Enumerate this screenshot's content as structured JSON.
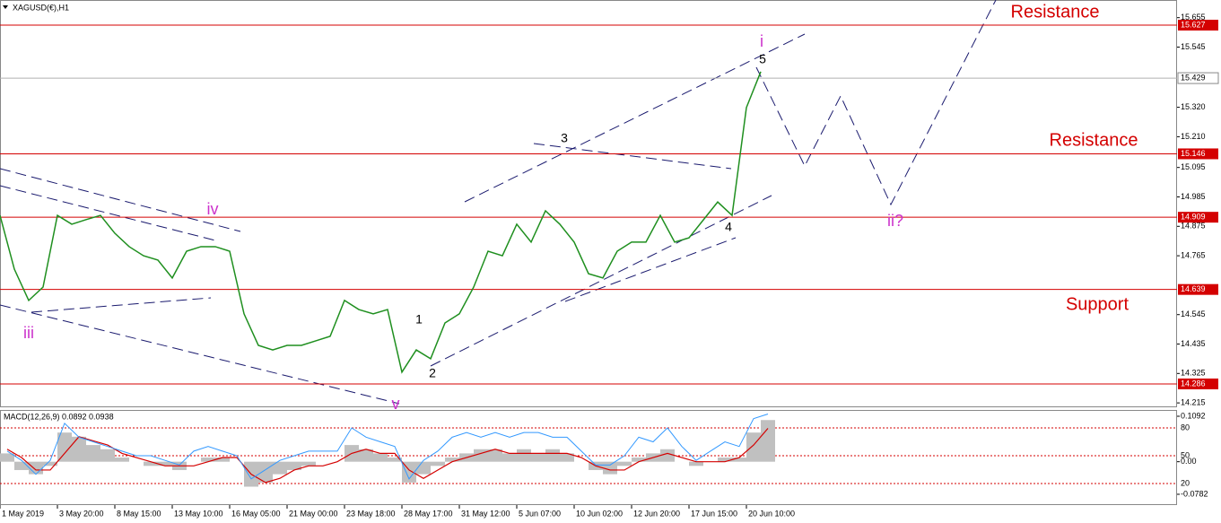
{
  "chart_data": {
    "type": "line",
    "title": "XAGUSD(€),H1",
    "color": "#1f8f1f",
    "price": [
      14.916,
      14.715,
      14.598,
      14.648,
      14.916,
      14.883,
      14.9,
      14.916,
      14.849,
      14.799,
      14.765,
      14.749,
      14.682,
      14.782,
      14.799,
      14.799,
      14.782,
      14.548,
      14.43,
      14.413,
      14.43,
      14.43,
      14.447,
      14.464,
      14.598,
      14.564,
      14.548,
      14.564,
      14.33,
      14.413,
      14.38,
      14.514,
      14.548,
      14.648,
      14.782,
      14.765,
      14.883,
      14.816,
      14.933,
      14.883,
      14.816,
      14.698,
      14.682,
      14.782,
      14.816,
      14.816,
      14.916,
      14.816,
      14.832,
      14.899,
      14.966,
      14.916,
      15.319,
      15.453
    ],
    "xlim": [
      0,
      82
    ],
    "xticks": [
      {
        "value": 0,
        "label": "1 May 2019"
      },
      {
        "value": 4,
        "label": "3 May 20:00"
      },
      {
        "value": 8,
        "label": "8 May 15:00"
      },
      {
        "value": 12,
        "label": "13 May 10:00"
      },
      {
        "value": 16,
        "label": "16 May 05:00"
      },
      {
        "value": 20,
        "label": "21 May 00:00"
      },
      {
        "value": 24,
        "label": "23 May 18:00"
      },
      {
        "value": 28,
        "label": "28 May 17:00"
      },
      {
        "value": 32,
        "label": "31 May 12:00"
      },
      {
        "value": 36,
        "label": "5 Jun 07:00"
      },
      {
        "value": 40,
        "label": "10 Jun 02:00"
      },
      {
        "value": 44,
        "label": "12 Jun 20:00"
      },
      {
        "value": 48,
        "label": "17 Jun 15:00"
      },
      {
        "value": 52,
        "label": "20 Jun 10:00"
      }
    ],
    "ylim": [
      14.202,
      15.721
    ],
    "yticks": [
      15.655,
      15.545,
      {
        "value": 15.32,
        "label": "15.320"
      },
      {
        "value": 15.21,
        "label": "15.210"
      },
      15.095,
      14.985,
      14.875,
      14.765,
      14.545,
      14.435,
      14.325,
      14.215
    ],
    "levels": [
      15.627,
      15.146,
      14.909,
      14.639,
      14.286
    ],
    "current_price": 15.429,
    "zone_labels": [
      "Resistance",
      "Resistance",
      "Support"
    ],
    "wave_labels": [
      "i",
      "5",
      "3",
      "iv",
      "iii",
      "1",
      "2",
      "4",
      "v",
      "ii?"
    ],
    "macd": {
      "label": "MACD(12,26,9) 0.0892 0.0938",
      "ylim": [
        -0.1041,
        0.1221
      ],
      "yticks": [
        0.1092,
        {
          "value": 0,
          "label": "0.00"
        },
        -0.0782
      ],
      "histogram": [
        0.02,
        -0.02,
        -0.03,
        -0.01,
        0.07,
        0.06,
        0.04,
        0.03,
        0.01,
        0.0,
        -0.01,
        -0.01,
        -0.02,
        0.0,
        0.01,
        0.01,
        0.0,
        -0.06,
        -0.05,
        -0.03,
        -0.02,
        -0.01,
        0.0,
        0.0,
        0.04,
        0.03,
        0.02,
        0.01,
        -0.05,
        -0.03,
        -0.01,
        0.01,
        0.02,
        0.03,
        0.03,
        0.02,
        0.03,
        0.02,
        0.03,
        0.02,
        0.0,
        -0.02,
        -0.03,
        -0.01,
        0.01,
        0.02,
        0.03,
        0.0,
        -0.01,
        0.0,
        0.01,
        0.01,
        0.07,
        0.1
      ],
      "signal": [
        0.03,
        0.01,
        -0.02,
        -0.02,
        0.02,
        0.06,
        0.05,
        0.04,
        0.02,
        0.01,
        0.0,
        -0.01,
        -0.01,
        -0.01,
        0.0,
        0.01,
        0.01,
        -0.03,
        -0.05,
        -0.04,
        -0.02,
        -0.01,
        -0.01,
        0.0,
        0.02,
        0.03,
        0.02,
        0.02,
        -0.02,
        -0.04,
        -0.02,
        0.0,
        0.01,
        0.02,
        0.03,
        0.02,
        0.02,
        0.02,
        0.02,
        0.02,
        0.01,
        -0.01,
        -0.02,
        -0.02,
        0.0,
        0.01,
        0.02,
        0.01,
        0.0,
        0.0,
        0.0,
        0.01,
        0.04,
        0.08
      ],
      "y2lim": [
        -3.2,
        98.4
      ],
      "y2ticks": [
        80,
        50,
        20
      ],
      "oscillator": [
        55,
        45,
        30,
        45,
        85,
        70,
        65,
        60,
        55,
        50,
        50,
        45,
        40,
        55,
        60,
        55,
        50,
        25,
        35,
        45,
        50,
        55,
        55,
        55,
        80,
        70,
        65,
        60,
        25,
        45,
        55,
        70,
        75,
        70,
        75,
        70,
        75,
        75,
        70,
        70,
        55,
        40,
        40,
        50,
        70,
        65,
        80,
        60,
        45,
        55,
        65,
        60,
        90,
        95
      ]
    }
  }
}
